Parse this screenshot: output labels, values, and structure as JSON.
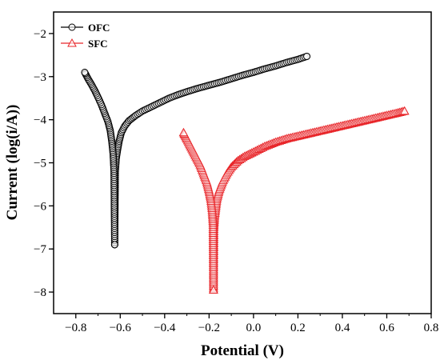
{
  "chart_data": {
    "type": "scatter",
    "title": "",
    "xlabel": "Potential (V)",
    "ylabel": "Current (log(i/A))",
    "xlim": [
      -0.9,
      0.8
    ],
    "ylim": [
      -8.5,
      -1.5
    ],
    "xticks": [
      -0.8,
      -0.6,
      -0.4,
      -0.2,
      0.0,
      0.2,
      0.4,
      0.6,
      0.8
    ],
    "xtick_labels": [
      "−0.8",
      "−0.6",
      "−0.4",
      "−0.2",
      "0.0",
      "0.2",
      "0.4",
      "0.6",
      "0.8"
    ],
    "yticks": [
      -8,
      -7,
      -6,
      -5,
      -4,
      -3,
      -2
    ],
    "ytick_labels": [
      "−8",
      "−7",
      "−6",
      "−5",
      "−4",
      "−3",
      "−2"
    ],
    "grid": false,
    "legend_position": "top-left",
    "series": [
      {
        "name": "OFC",
        "color": "#000000",
        "marker": "circle",
        "anodic": [
          [
            -0.625,
            -6.9
          ],
          [
            -0.622,
            -5.2
          ],
          [
            -0.618,
            -4.9
          ],
          [
            -0.612,
            -4.7
          ],
          [
            -0.605,
            -4.5
          ],
          [
            -0.595,
            -4.3
          ],
          [
            -0.58,
            -4.15
          ],
          [
            -0.56,
            -4.02
          ],
          [
            -0.53,
            -3.9
          ],
          [
            -0.5,
            -3.8
          ],
          [
            -0.46,
            -3.7
          ],
          [
            -0.42,
            -3.6
          ],
          [
            -0.38,
            -3.5
          ],
          [
            -0.34,
            -3.42
          ],
          [
            -0.3,
            -3.35
          ],
          [
            -0.25,
            -3.27
          ],
          [
            -0.2,
            -3.2
          ],
          [
            -0.15,
            -3.13
          ],
          [
            -0.1,
            -3.05
          ],
          [
            -0.05,
            -2.97
          ],
          [
            0.0,
            -2.9
          ],
          [
            0.05,
            -2.82
          ],
          [
            0.1,
            -2.75
          ],
          [
            0.15,
            -2.67
          ],
          [
            0.2,
            -2.6
          ],
          [
            0.24,
            -2.53
          ]
        ],
        "cathodic": [
          [
            -0.625,
            -6.9
          ],
          [
            -0.628,
            -5.2
          ],
          [
            -0.632,
            -4.8
          ],
          [
            -0.638,
            -4.5
          ],
          [
            -0.645,
            -4.25
          ],
          [
            -0.655,
            -4.05
          ],
          [
            -0.67,
            -3.85
          ],
          [
            -0.685,
            -3.65
          ],
          [
            -0.7,
            -3.48
          ],
          [
            -0.715,
            -3.32
          ],
          [
            -0.73,
            -3.18
          ],
          [
            -0.745,
            -3.05
          ],
          [
            -0.755,
            -2.95
          ],
          [
            -0.76,
            -2.9
          ]
        ]
      },
      {
        "name": "SFC",
        "color": "#e8262a",
        "marker": "triangle",
        "anodic": [
          [
            -0.18,
            -7.95
          ],
          [
            -0.178,
            -6.5
          ],
          [
            -0.175,
            -6.25
          ],
          [
            -0.17,
            -6.05
          ],
          [
            -0.165,
            -5.85
          ],
          [
            -0.155,
            -5.65
          ],
          [
            -0.14,
            -5.45
          ],
          [
            -0.12,
            -5.25
          ],
          [
            -0.1,
            -5.1
          ],
          [
            -0.07,
            -4.95
          ],
          [
            -0.04,
            -4.85
          ],
          [
            0.0,
            -4.75
          ],
          [
            0.05,
            -4.62
          ],
          [
            0.1,
            -4.52
          ],
          [
            0.15,
            -4.44
          ],
          [
            0.2,
            -4.38
          ],
          [
            0.25,
            -4.32
          ],
          [
            0.3,
            -4.26
          ],
          [
            0.35,
            -4.2
          ],
          [
            0.4,
            -4.14
          ],
          [
            0.45,
            -4.08
          ],
          [
            0.5,
            -4.02
          ],
          [
            0.55,
            -3.96
          ],
          [
            0.6,
            -3.9
          ],
          [
            0.65,
            -3.84
          ],
          [
            0.68,
            -3.8
          ]
        ],
        "cathodic": [
          [
            -0.18,
            -7.95
          ],
          [
            -0.182,
            -6.4
          ],
          [
            -0.186,
            -6.1
          ],
          [
            -0.192,
            -5.85
          ],
          [
            -0.2,
            -5.65
          ],
          [
            -0.21,
            -5.45
          ],
          [
            -0.225,
            -5.25
          ],
          [
            -0.24,
            -5.05
          ],
          [
            -0.255,
            -4.9
          ],
          [
            -0.27,
            -4.75
          ],
          [
            -0.285,
            -4.6
          ],
          [
            -0.3,
            -4.45
          ],
          [
            -0.31,
            -4.35
          ],
          [
            -0.315,
            -4.3
          ]
        ]
      }
    ]
  }
}
